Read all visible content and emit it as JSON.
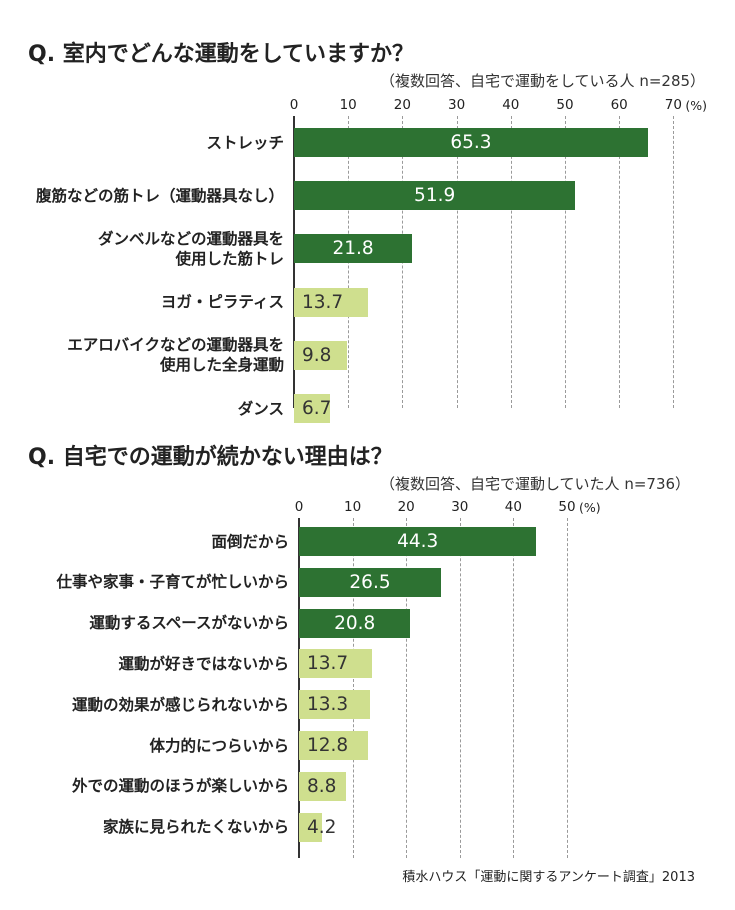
{
  "source": "積水ハウス「運動に関するアンケート調査」2013",
  "chart_data": [
    {
      "type": "bar",
      "orientation": "horizontal",
      "title": "Q. 室内でどんな運動をしていますか？",
      "subtitle": "（複数回答、自宅で運動をしている人  n=285）",
      "unit_label": "(%)",
      "ticks": [
        "0",
        "10",
        "20",
        "30",
        "40",
        "50",
        "60",
        "70"
      ],
      "xlim": [
        0,
        70
      ],
      "categories": [
        [
          "ストレッチ"
        ],
        [
          "腹筋などの筋トレ（運動器具なし）"
        ],
        [
          "ダンベルなどの運動器具を",
          "使用した筋トレ"
        ],
        [
          "ヨガ・ピラティス"
        ],
        [
          "エアロバイクなどの運動器具を",
          "使用した全身運動"
        ],
        [
          "ダンス"
        ]
      ],
      "values": [
        65.3,
        51.9,
        21.8,
        13.7,
        9.8,
        6.7
      ],
      "value_labels": [
        "65.3",
        "51.9",
        "21.8",
        "13.7",
        "9.8",
        "6.7"
      ],
      "bar_colors": [
        "#2d7232",
        "#2d7232",
        "#2d7232",
        "#cfdf8e",
        "#cfdf8e",
        "#cfdf8e"
      ],
      "grid": true
    },
    {
      "type": "bar",
      "orientation": "horizontal",
      "title": "Q. 自宅での運動が続かない理由は？",
      "subtitle": "（複数回答、自宅で運動していた人  n=736）",
      "unit_label": "(%)",
      "ticks": [
        "0",
        "10",
        "20",
        "30",
        "40",
        "50"
      ],
      "xlim": [
        0,
        50
      ],
      "categories": [
        [
          "面倒だから"
        ],
        [
          "仕事や家事・子育てが忙しいから"
        ],
        [
          "運動するスペースがないから"
        ],
        [
          "運動が好きではないから"
        ],
        [
          "運動の効果が感じられないから"
        ],
        [
          "体力的につらいから"
        ],
        [
          "外での運動のほうが楽しいから"
        ],
        [
          "家族に見られたくないから"
        ]
      ],
      "values": [
        44.3,
        26.5,
        20.8,
        13.7,
        13.3,
        12.8,
        8.8,
        4.2
      ],
      "value_labels": [
        "44.3",
        "26.5",
        "20.8",
        "13.7",
        "13.3",
        "12.8",
        "8.8",
        "4.2"
      ],
      "bar_colors": [
        "#2d7232",
        "#2d7232",
        "#2d7232",
        "#cfdf8e",
        "#cfdf8e",
        "#cfdf8e",
        "#cfdf8e",
        "#cfdf8e"
      ],
      "grid": true
    }
  ]
}
